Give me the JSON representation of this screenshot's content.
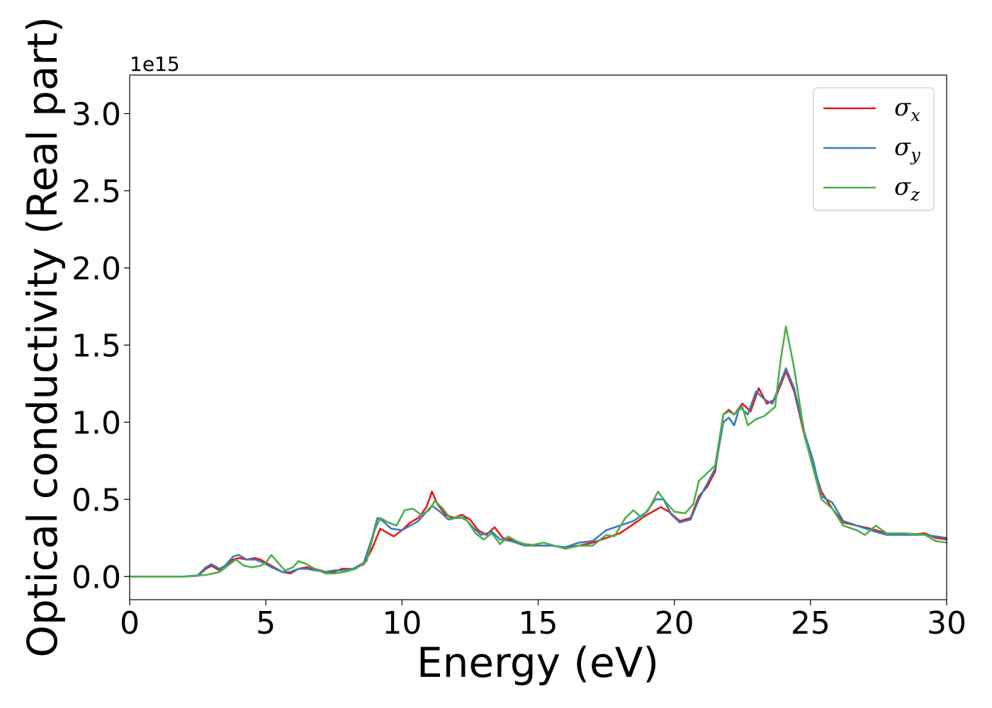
{
  "chart_data": {
    "type": "line",
    "title": "",
    "xlabel": "Energy (eV)",
    "ylabel": "Optical conductivity (Real part)",
    "y_offset_label": "1e15",
    "xlim": [
      0,
      30
    ],
    "ylim": [
      -0.15,
      3.25
    ],
    "xticks": [
      0,
      5,
      10,
      15,
      20,
      25,
      30
    ],
    "xtick_labels": [
      "0",
      "5",
      "10",
      "15",
      "20",
      "25",
      "30"
    ],
    "yticks": [
      0.0,
      0.5,
      1.0,
      1.5,
      2.0,
      2.5,
      3.0
    ],
    "ytick_labels": [
      "0.0",
      "0.5",
      "1.0",
      "1.5",
      "2.0",
      "2.5",
      "3.0"
    ],
    "grid": false,
    "legend_position": "top-right",
    "series": [
      {
        "name": "σx",
        "label_main": "σ",
        "label_sub": "x",
        "color": "#e41a1c",
        "points": [
          [
            0,
            0
          ],
          [
            2,
            0
          ],
          [
            2.5,
            0.005
          ],
          [
            2.8,
            0.05
          ],
          [
            3.0,
            0.07
          ],
          [
            3.3,
            0.04
          ],
          [
            3.5,
            0.06
          ],
          [
            3.8,
            0.11
          ],
          [
            4.0,
            0.12
          ],
          [
            4.3,
            0.11
          ],
          [
            4.6,
            0.12
          ],
          [
            4.8,
            0.11
          ],
          [
            5.2,
            0.07
          ],
          [
            5.6,
            0.03
          ],
          [
            5.9,
            0.02
          ],
          [
            6.2,
            0.05
          ],
          [
            6.5,
            0.06
          ],
          [
            6.8,
            0.05
          ],
          [
            7.2,
            0.03
          ],
          [
            7.5,
            0.03
          ],
          [
            7.8,
            0.05
          ],
          [
            8.2,
            0.05
          ],
          [
            8.6,
            0.08
          ],
          [
            8.9,
            0.18
          ],
          [
            9.2,
            0.31
          ],
          [
            9.5,
            0.28
          ],
          [
            9.7,
            0.26
          ],
          [
            10.0,
            0.3
          ],
          [
            10.3,
            0.35
          ],
          [
            10.6,
            0.38
          ],
          [
            10.9,
            0.45
          ],
          [
            11.1,
            0.55
          ],
          [
            11.3,
            0.47
          ],
          [
            11.6,
            0.4
          ],
          [
            11.9,
            0.38
          ],
          [
            12.2,
            0.4
          ],
          [
            12.5,
            0.37
          ],
          [
            12.8,
            0.3
          ],
          [
            13.1,
            0.27
          ],
          [
            13.4,
            0.32
          ],
          [
            13.7,
            0.25
          ],
          [
            14.0,
            0.24
          ],
          [
            14.5,
            0.21
          ],
          [
            15.0,
            0.2
          ],
          [
            15.5,
            0.2
          ],
          [
            16.0,
            0.19
          ],
          [
            16.5,
            0.2
          ],
          [
            17.0,
            0.22
          ],
          [
            17.5,
            0.25
          ],
          [
            18.0,
            0.28
          ],
          [
            18.5,
            0.34
          ],
          [
            19.0,
            0.4
          ],
          [
            19.5,
            0.45
          ],
          [
            19.8,
            0.42
          ],
          [
            20.2,
            0.36
          ],
          [
            20.6,
            0.38
          ],
          [
            20.9,
            0.52
          ],
          [
            21.2,
            0.58
          ],
          [
            21.5,
            0.68
          ],
          [
            21.8,
            1.05
          ],
          [
            22.0,
            1.08
          ],
          [
            22.2,
            1.05
          ],
          [
            22.5,
            1.12
          ],
          [
            22.8,
            1.07
          ],
          [
            23.1,
            1.22
          ],
          [
            23.4,
            1.12
          ],
          [
            23.7,
            1.15
          ],
          [
            24.1,
            1.33
          ],
          [
            24.4,
            1.2
          ],
          [
            24.8,
            0.9
          ],
          [
            25.1,
            0.72
          ],
          [
            25.4,
            0.55
          ],
          [
            25.8,
            0.44
          ],
          [
            26.2,
            0.35
          ],
          [
            26.7,
            0.33
          ],
          [
            27.2,
            0.31
          ],
          [
            27.8,
            0.28
          ],
          [
            28.5,
            0.27
          ],
          [
            29.2,
            0.28
          ],
          [
            29.6,
            0.25
          ],
          [
            30,
            0.24
          ]
        ]
      },
      {
        "name": "σy",
        "label_main": "σ",
        "label_sub": "y",
        "color": "#377eb8",
        "points": [
          [
            0,
            0
          ],
          [
            2,
            0
          ],
          [
            2.5,
            0.008
          ],
          [
            2.8,
            0.06
          ],
          [
            3.0,
            0.08
          ],
          [
            3.3,
            0.05
          ],
          [
            3.5,
            0.07
          ],
          [
            3.8,
            0.13
          ],
          [
            4.0,
            0.14
          ],
          [
            4.3,
            0.11
          ],
          [
            4.6,
            0.11
          ],
          [
            4.9,
            0.09
          ],
          [
            5.2,
            0.06
          ],
          [
            5.6,
            0.03
          ],
          [
            5.9,
            0.03
          ],
          [
            6.2,
            0.05
          ],
          [
            6.5,
            0.05
          ],
          [
            6.8,
            0.04
          ],
          [
            7.2,
            0.03
          ],
          [
            7.5,
            0.04
          ],
          [
            7.8,
            0.04
          ],
          [
            8.2,
            0.05
          ],
          [
            8.6,
            0.09
          ],
          [
            8.9,
            0.25
          ],
          [
            9.1,
            0.38
          ],
          [
            9.3,
            0.36
          ],
          [
            9.6,
            0.31
          ],
          [
            10.0,
            0.3
          ],
          [
            10.3,
            0.33
          ],
          [
            10.6,
            0.36
          ],
          [
            10.9,
            0.42
          ],
          [
            11.1,
            0.46
          ],
          [
            11.4,
            0.42
          ],
          [
            11.7,
            0.37
          ],
          [
            12.0,
            0.38
          ],
          [
            12.3,
            0.38
          ],
          [
            12.6,
            0.32
          ],
          [
            12.9,
            0.27
          ],
          [
            13.3,
            0.29
          ],
          [
            13.6,
            0.24
          ],
          [
            14.0,
            0.23
          ],
          [
            14.5,
            0.2
          ],
          [
            15.0,
            0.2
          ],
          [
            15.5,
            0.2
          ],
          [
            16.0,
            0.19
          ],
          [
            16.5,
            0.22
          ],
          [
            17.0,
            0.23
          ],
          [
            17.5,
            0.3
          ],
          [
            18.0,
            0.33
          ],
          [
            18.5,
            0.36
          ],
          [
            19.0,
            0.42
          ],
          [
            19.3,
            0.5
          ],
          [
            19.6,
            0.5
          ],
          [
            19.9,
            0.4
          ],
          [
            20.2,
            0.35
          ],
          [
            20.6,
            0.37
          ],
          [
            20.9,
            0.5
          ],
          [
            21.2,
            0.6
          ],
          [
            21.5,
            0.7
          ],
          [
            21.8,
            1.0
          ],
          [
            22.0,
            1.03
          ],
          [
            22.2,
            0.98
          ],
          [
            22.4,
            1.1
          ],
          [
            22.7,
            1.05
          ],
          [
            23.0,
            1.2
          ],
          [
            23.3,
            1.15
          ],
          [
            23.6,
            1.12
          ],
          [
            24.1,
            1.35
          ],
          [
            24.4,
            1.22
          ],
          [
            24.8,
            0.92
          ],
          [
            25.1,
            0.75
          ],
          [
            25.4,
            0.52
          ],
          [
            25.8,
            0.48
          ],
          [
            26.2,
            0.36
          ],
          [
            26.7,
            0.33
          ],
          [
            27.2,
            0.3
          ],
          [
            27.8,
            0.27
          ],
          [
            28.5,
            0.27
          ],
          [
            29.2,
            0.27
          ],
          [
            29.6,
            0.26
          ],
          [
            30,
            0.25
          ]
        ]
      },
      {
        "name": "σz",
        "label_main": "σ",
        "label_sub": "z",
        "color": "#4daf4a",
        "points": [
          [
            0,
            0
          ],
          [
            2,
            0
          ],
          [
            2.8,
            0.01
          ],
          [
            3.3,
            0.03
          ],
          [
            3.6,
            0.07
          ],
          [
            3.9,
            0.11
          ],
          [
            4.2,
            0.07
          ],
          [
            4.5,
            0.06
          ],
          [
            4.8,
            0.07
          ],
          [
            5.0,
            0.09
          ],
          [
            5.2,
            0.14
          ],
          [
            5.4,
            0.1
          ],
          [
            5.7,
            0.04
          ],
          [
            6.0,
            0.06
          ],
          [
            6.2,
            0.1
          ],
          [
            6.5,
            0.08
          ],
          [
            6.8,
            0.05
          ],
          [
            7.2,
            0.02
          ],
          [
            7.5,
            0.02
          ],
          [
            7.9,
            0.03
          ],
          [
            8.3,
            0.05
          ],
          [
            8.7,
            0.1
          ],
          [
            9.0,
            0.3
          ],
          [
            9.2,
            0.38
          ],
          [
            9.5,
            0.35
          ],
          [
            9.8,
            0.33
          ],
          [
            10.1,
            0.43
          ],
          [
            10.4,
            0.44
          ],
          [
            10.7,
            0.4
          ],
          [
            11.0,
            0.43
          ],
          [
            11.2,
            0.49
          ],
          [
            11.5,
            0.44
          ],
          [
            11.8,
            0.37
          ],
          [
            12.1,
            0.39
          ],
          [
            12.4,
            0.36
          ],
          [
            12.7,
            0.28
          ],
          [
            13.0,
            0.24
          ],
          [
            13.3,
            0.28
          ],
          [
            13.6,
            0.21
          ],
          [
            13.9,
            0.26
          ],
          [
            14.3,
            0.22
          ],
          [
            14.7,
            0.2
          ],
          [
            15.2,
            0.22
          ],
          [
            15.6,
            0.2
          ],
          [
            16.0,
            0.18
          ],
          [
            16.5,
            0.2
          ],
          [
            17.0,
            0.2
          ],
          [
            17.5,
            0.27
          ],
          [
            17.8,
            0.26
          ],
          [
            18.2,
            0.38
          ],
          [
            18.5,
            0.43
          ],
          [
            18.8,
            0.38
          ],
          [
            19.1,
            0.45
          ],
          [
            19.4,
            0.55
          ],
          [
            19.7,
            0.48
          ],
          [
            20.0,
            0.42
          ],
          [
            20.4,
            0.41
          ],
          [
            20.7,
            0.47
          ],
          [
            20.9,
            0.62
          ],
          [
            21.2,
            0.67
          ],
          [
            21.5,
            0.72
          ],
          [
            21.8,
            1.05
          ],
          [
            22.0,
            1.07
          ],
          [
            22.2,
            1.05
          ],
          [
            22.5,
            1.1
          ],
          [
            22.7,
            0.98
          ],
          [
            23.0,
            1.02
          ],
          [
            23.3,
            1.04
          ],
          [
            23.7,
            1.1
          ],
          [
            23.9,
            1.4
          ],
          [
            24.1,
            1.62
          ],
          [
            24.4,
            1.35
          ],
          [
            24.8,
            0.9
          ],
          [
            25.1,
            0.7
          ],
          [
            25.4,
            0.5
          ],
          [
            25.8,
            0.44
          ],
          [
            26.2,
            0.33
          ],
          [
            26.7,
            0.3
          ],
          [
            27.0,
            0.27
          ],
          [
            27.4,
            0.33
          ],
          [
            27.8,
            0.28
          ],
          [
            28.5,
            0.28
          ],
          [
            29.2,
            0.27
          ],
          [
            29.6,
            0.23
          ],
          [
            30,
            0.22
          ]
        ]
      }
    ]
  }
}
